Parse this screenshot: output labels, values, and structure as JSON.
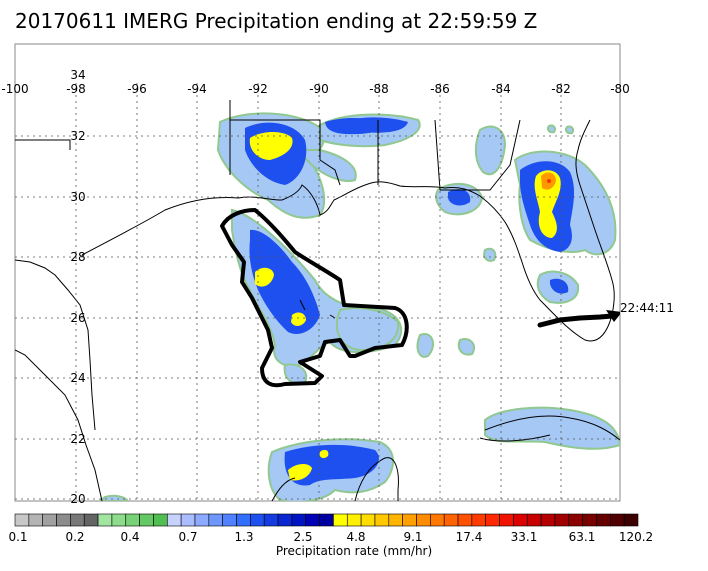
{
  "title": "20170611 IMERG Precipitation ending at 22:59:59 Z",
  "lon_ticks": [
    "-100",
    "-98",
    "-96",
    "-94",
    "-92",
    "-90",
    "-88",
    "-86",
    "-84",
    "-82",
    "-80"
  ],
  "lat_ticks": [
    "34",
    "32",
    "30",
    "28",
    "26",
    "24",
    "22",
    "20"
  ],
  "track_label": "22:44:11",
  "colorbar": {
    "label": "Precipitation rate (mm/hr)",
    "tick_labels": [
      "0.1",
      "0.2",
      "0.4",
      "0.7",
      "1.3",
      "2.5",
      "4.8",
      "9.1",
      "17.4",
      "33.1",
      "63.1",
      "120.2"
    ],
    "colors": [
      "#c8c8c8",
      "#b4b4b4",
      "#a0a0a0",
      "#8c8c8c",
      "#787878",
      "#646464",
      "#a0e6a0",
      "#8cdc8c",
      "#78d278",
      "#64c864",
      "#50be50",
      "#c8d2ff",
      "#aabeff",
      "#8caaff",
      "#6e96ff",
      "#5082ff",
      "#326eff",
      "#1e50f0",
      "#143ce1",
      "#0a28d2",
      "#0014c3",
      "#0000b4",
      "#0000a0",
      "#ffff00",
      "#fff000",
      "#ffdc00",
      "#ffc800",
      "#ffb400",
      "#ffa000",
      "#ff8c00",
      "#ff7800",
      "#ff6400",
      "#ff5000",
      "#ff3c00",
      "#ff2800",
      "#f01400",
      "#dc0000",
      "#c80000",
      "#b40000",
      "#a00000",
      "#8c0000",
      "#780000",
      "#640000",
      "#500000",
      "#3c0000"
    ]
  },
  "levels": {
    "light": "#a6c8f5",
    "outline": "#90c890",
    "medium": "#1e50f0",
    "heavy": "#0000c8",
    "yellow": "#ffff00",
    "orange": "#ff9900",
    "red": "#ff3300"
  }
}
